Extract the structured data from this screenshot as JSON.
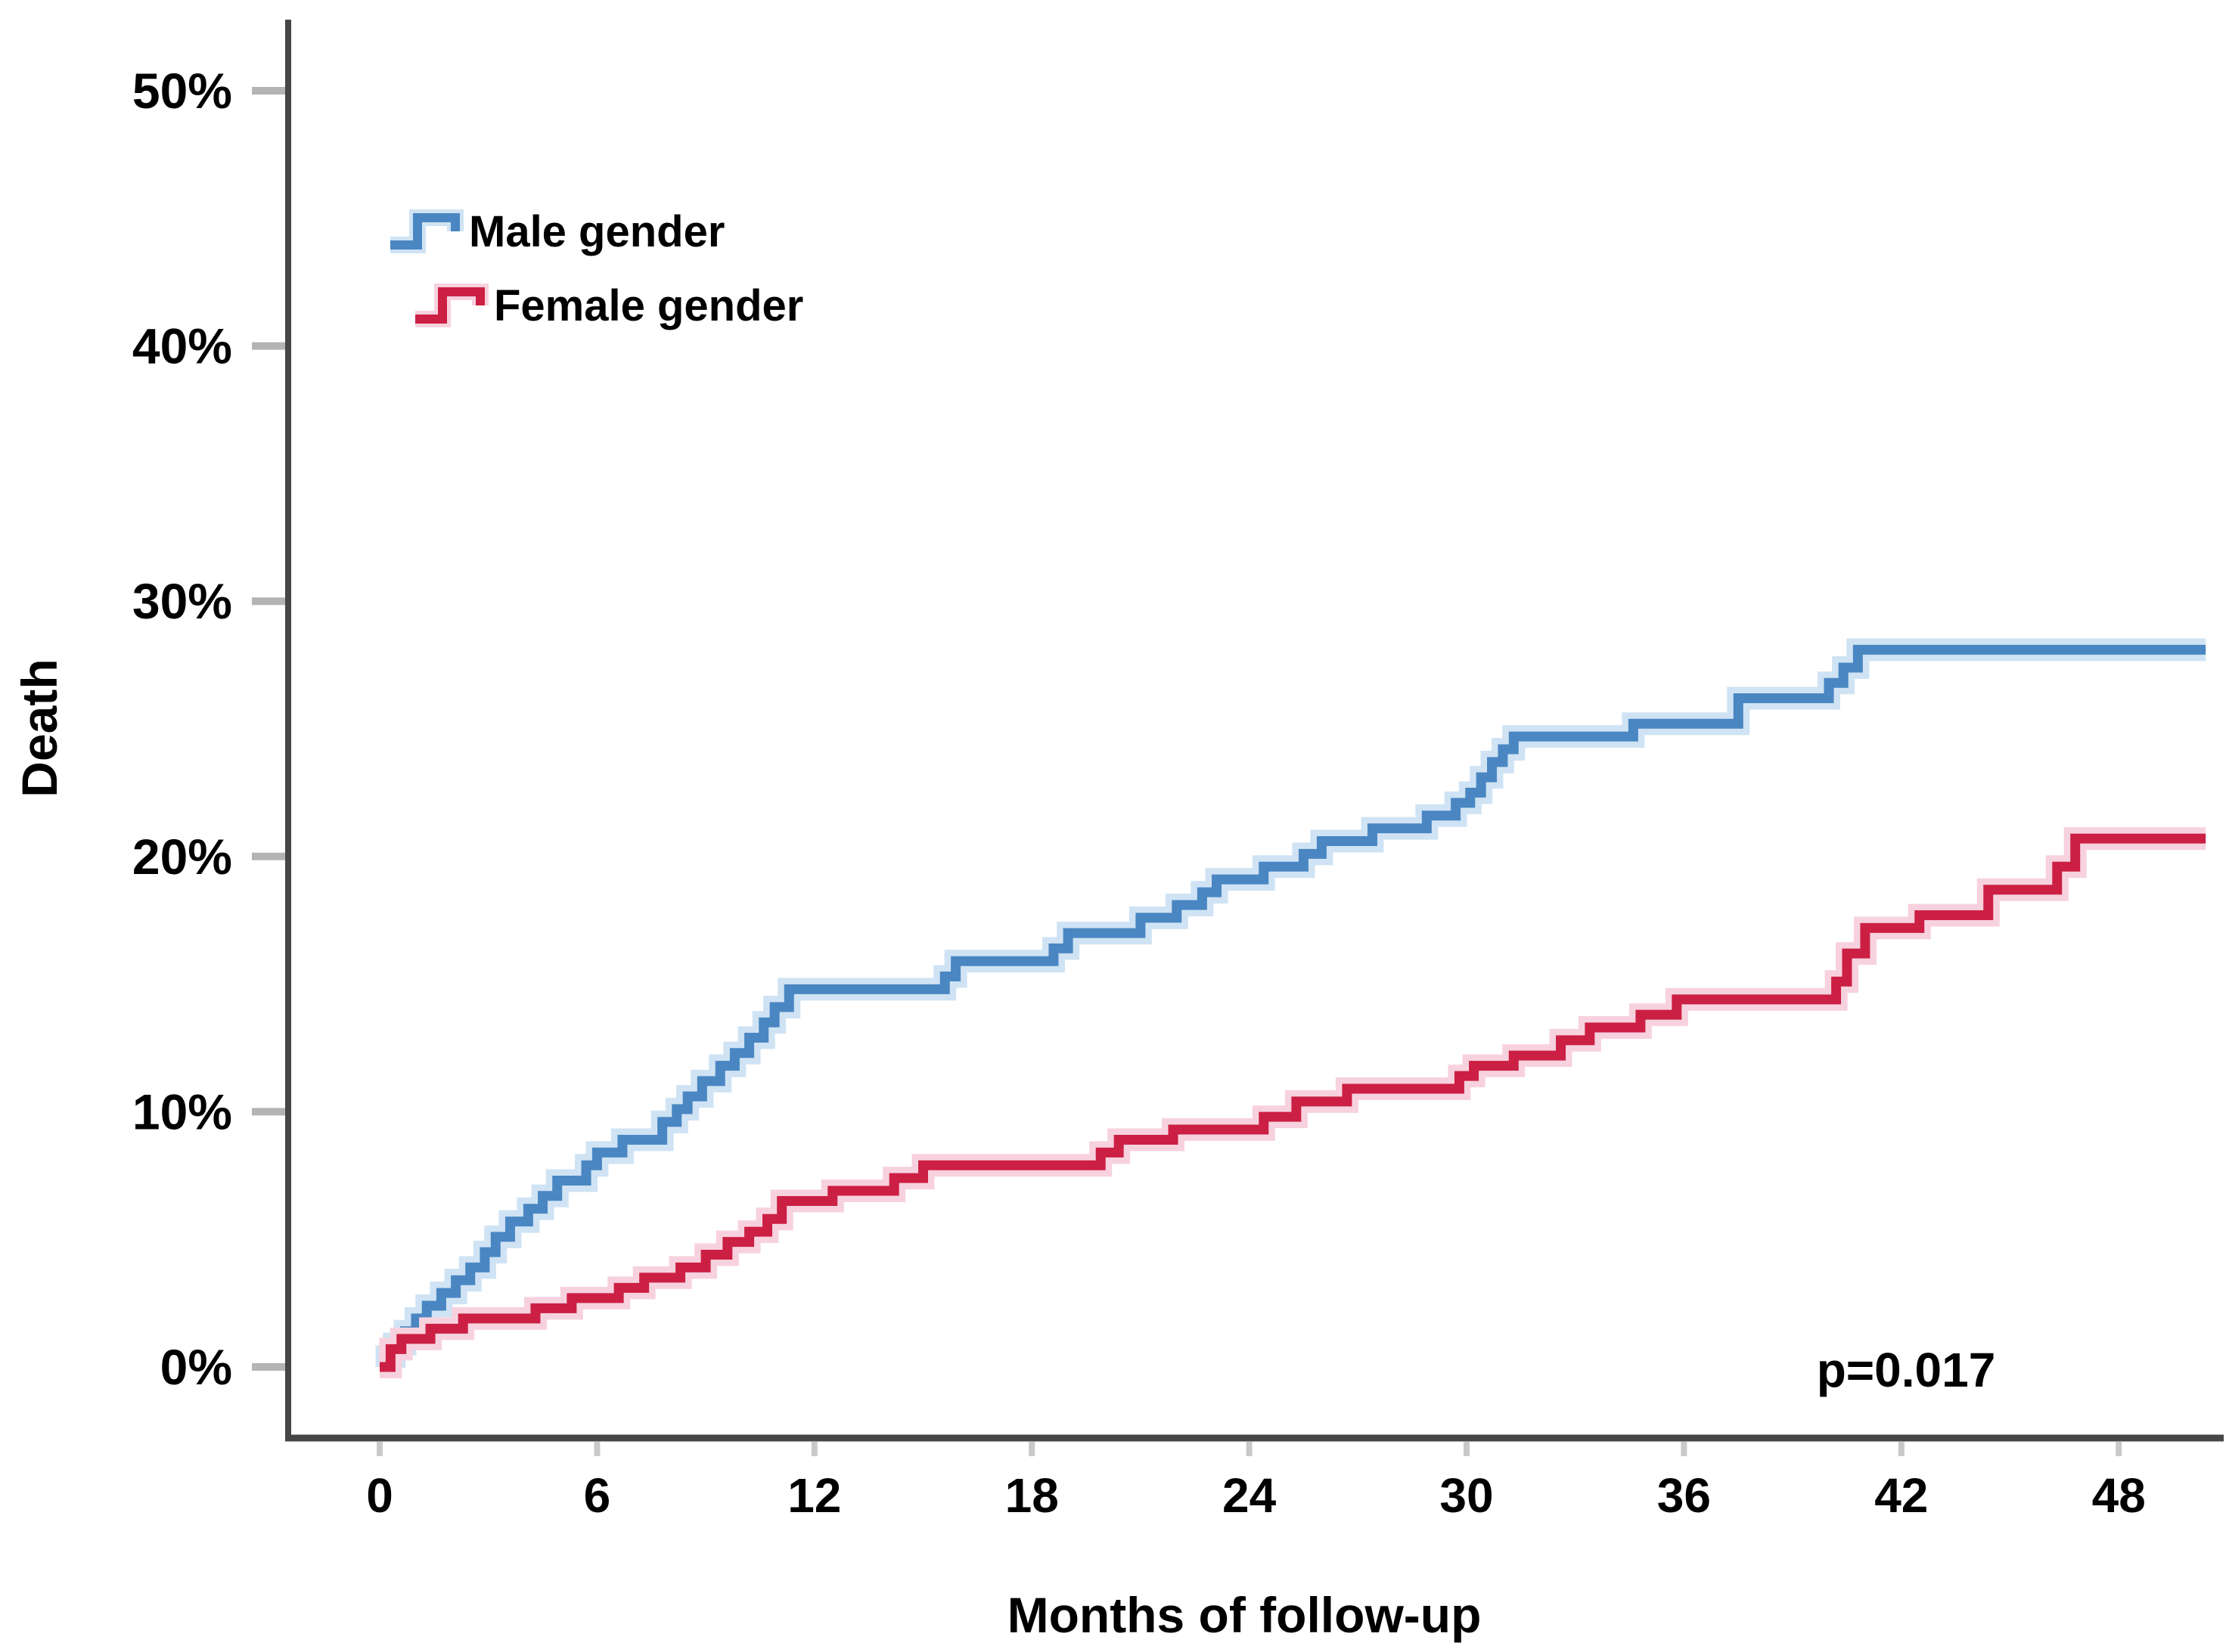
{
  "chart_data": {
    "type": "line",
    "step": true,
    "title": "",
    "xlabel": "Months of follow-up",
    "ylabel": "Death",
    "annotation": "p=0.017",
    "p_value": 0.017,
    "x_ticks": [
      0,
      6,
      12,
      18,
      24,
      30,
      36,
      42,
      48
    ],
    "y_ticks_percent": [
      0,
      10,
      20,
      30,
      40,
      50
    ],
    "x_range_months": [
      0,
      51
    ],
    "y_range_percent": [
      0,
      52.5
    ],
    "end_month": 50.4,
    "grid": false,
    "legend_position": "top-left-inside",
    "series": [
      {
        "name": "Male gender",
        "color": "#4a86c2",
        "halo_color": "#cfe3f4",
        "points": [
          [
            0,
            0
          ],
          [
            0.2,
            0.4
          ],
          [
            0.4,
            0.9
          ],
          [
            0.7,
            1.4
          ],
          [
            1.0,
            1.9
          ],
          [
            1.3,
            2.4
          ],
          [
            1.7,
            2.9
          ],
          [
            2.1,
            3.4
          ],
          [
            2.5,
            3.9
          ],
          [
            2.9,
            4.5
          ],
          [
            3.2,
            5.1
          ],
          [
            3.6,
            5.7
          ],
          [
            4.1,
            6.2
          ],
          [
            4.5,
            6.7
          ],
          [
            4.9,
            7.3
          ],
          [
            5.7,
            7.9
          ],
          [
            6.0,
            8.4
          ],
          [
            6.7,
            8.9
          ],
          [
            7.8,
            9.6
          ],
          [
            8.2,
            10.1
          ],
          [
            8.5,
            10.6
          ],
          [
            8.9,
            11.2
          ],
          [
            9.4,
            11.8
          ],
          [
            9.8,
            12.3
          ],
          [
            10.2,
            12.9
          ],
          [
            10.6,
            13.5
          ],
          [
            10.9,
            14.1
          ],
          [
            11.3,
            14.8
          ],
          [
            15.6,
            15.3
          ],
          [
            15.9,
            15.9
          ],
          [
            18.6,
            16.4
          ],
          [
            19.0,
            17.0
          ],
          [
            21.0,
            17.6
          ],
          [
            22.0,
            18.1
          ],
          [
            22.7,
            18.6
          ],
          [
            23.1,
            19.1
          ],
          [
            24.4,
            19.6
          ],
          [
            25.5,
            20.1
          ],
          [
            26.0,
            20.6
          ],
          [
            27.4,
            21.1
          ],
          [
            28.9,
            21.6
          ],
          [
            29.7,
            22.1
          ],
          [
            30.1,
            22.5
          ],
          [
            30.4,
            23.1
          ],
          [
            30.7,
            23.7
          ],
          [
            31.0,
            24.2
          ],
          [
            31.3,
            24.7
          ],
          [
            34.6,
            25.2
          ],
          [
            37.5,
            26.2
          ],
          [
            40.0,
            26.8
          ],
          [
            40.4,
            27.4
          ],
          [
            40.8,
            28.1
          ]
        ]
      },
      {
        "name": "Female gender",
        "color": "#cc1f44",
        "halo_color": "#f7d2de",
        "points": [
          [
            0,
            0
          ],
          [
            0.3,
            0.7
          ],
          [
            0.6,
            1.1
          ],
          [
            1.4,
            1.5
          ],
          [
            2.3,
            1.9
          ],
          [
            4.3,
            2.3
          ],
          [
            5.3,
            2.7
          ],
          [
            6.6,
            3.1
          ],
          [
            7.3,
            3.5
          ],
          [
            8.3,
            3.9
          ],
          [
            9.0,
            4.4
          ],
          [
            9.6,
            4.9
          ],
          [
            10.2,
            5.3
          ],
          [
            10.7,
            5.8
          ],
          [
            11.1,
            6.5
          ],
          [
            12.5,
            6.9
          ],
          [
            14.2,
            7.4
          ],
          [
            15.0,
            7.9
          ],
          [
            19.9,
            8.4
          ],
          [
            20.4,
            8.9
          ],
          [
            21.9,
            9.3
          ],
          [
            24.4,
            9.8
          ],
          [
            25.3,
            10.4
          ],
          [
            26.7,
            10.9
          ],
          [
            29.8,
            11.4
          ],
          [
            30.2,
            11.8
          ],
          [
            31.3,
            12.2
          ],
          [
            32.6,
            12.8
          ],
          [
            33.4,
            13.3
          ],
          [
            34.8,
            13.8
          ],
          [
            35.8,
            14.4
          ],
          [
            40.2,
            15.1
          ],
          [
            40.5,
            16.2
          ],
          [
            41.0,
            17.2
          ],
          [
            42.5,
            17.7
          ],
          [
            44.4,
            18.7
          ],
          [
            46.3,
            19.6
          ],
          [
            46.8,
            20.7
          ]
        ]
      }
    ]
  },
  "style_colors": {
    "axis_line": "#464646",
    "y_tick_mark": "#b4b4b4",
    "x_tick_mark": "#c9c9c9",
    "text": "#000000",
    "background": "#ffffff"
  }
}
